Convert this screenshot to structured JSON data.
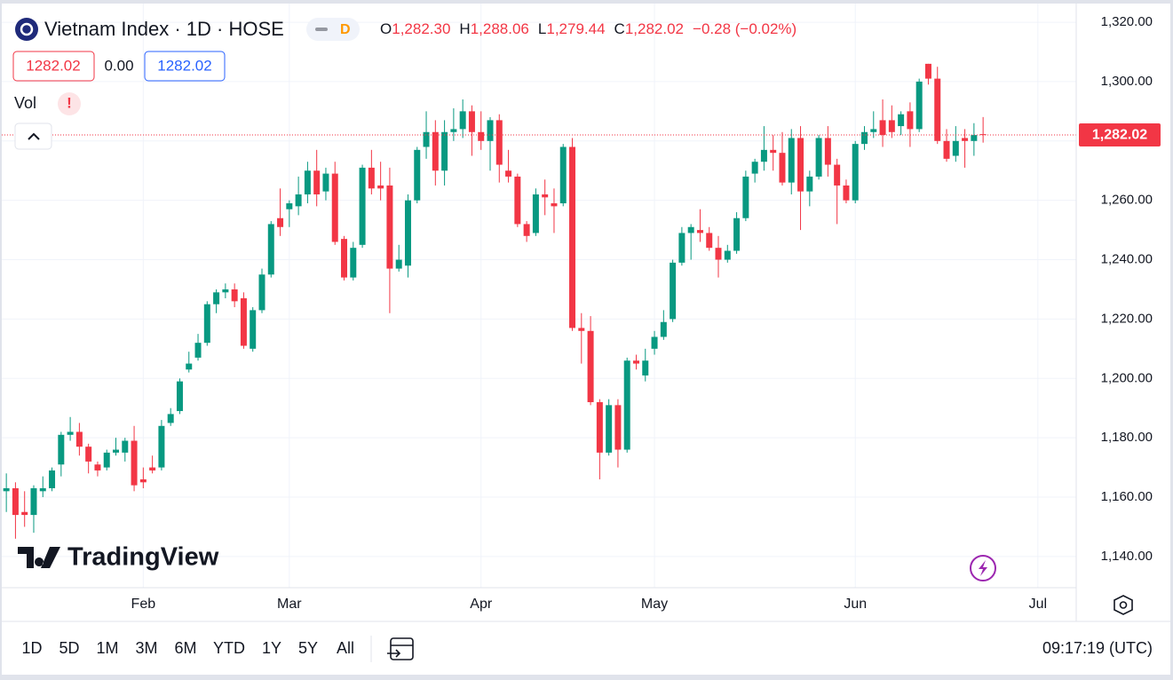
{
  "chart_data": {
    "type": "candlestick",
    "title": "Vietnam Index · 1D · HOSE",
    "interval_badge": "D",
    "legend": {
      "o_label": "O",
      "o": "1,282.30",
      "h_label": "H",
      "h": "1,288.06",
      "l_label": "L",
      "l": "1,279.44",
      "c_label": "C",
      "c": "1,282.02",
      "change": "−0.28 (−0.02%)"
    },
    "inputs": [
      "1282.02",
      "0.00",
      "1282.02"
    ],
    "volume_label": "Vol",
    "warning": "!",
    "watermark": "TradingView",
    "last_price": {
      "value": 1282.02,
      "label": "1,282.02"
    },
    "up_color": "#089981",
    "down_color": "#f23645",
    "grid": true,
    "xlim": [
      -0.5,
      117.2
    ],
    "xticks": [
      {
        "value": 15,
        "label": "Feb"
      },
      {
        "value": 31,
        "label": "Mar"
      },
      {
        "value": 52,
        "label": "Apr"
      },
      {
        "value": 71,
        "label": "May"
      },
      {
        "value": 93,
        "label": "Jun"
      },
      {
        "value": 113,
        "label": "Jul"
      }
    ],
    "ylim": [
      1129.5,
      1326.3
    ],
    "yticks": [
      {
        "value": 1140,
        "label": "1,140.00"
      },
      {
        "value": 1160,
        "label": "1,160.00"
      },
      {
        "value": 1180,
        "label": "1,180.00"
      },
      {
        "value": 1200,
        "label": "1,200.00"
      },
      {
        "value": 1220,
        "label": "1,220.00"
      },
      {
        "value": 1240,
        "label": "1,240.00"
      },
      {
        "value": 1260,
        "label": "1,260.00"
      },
      {
        "value": 1280,
        "label": "1,280.00"
      },
      {
        "value": 1300,
        "label": "1,300.00"
      },
      {
        "value": 1320,
        "label": "1,320.00"
      }
    ],
    "open": [
      1162,
      1163,
      1155,
      1154,
      1162,
      1163,
      1171,
      1181,
      1182,
      1177,
      1171,
      1170,
      1175,
      1175,
      1179,
      1166,
      1170,
      1170,
      1185,
      1189,
      1203,
      1207,
      1212,
      1225,
      1229,
      1230,
      1227,
      1210,
      1223,
      1235,
      1254,
      1257,
      1258,
      1262,
      1270,
      1263,
      1269,
      1247,
      1234,
      1245,
      1271,
      1265,
      1265,
      1237,
      1238,
      1260,
      1278,
      1283,
      1270,
      1283,
      1284,
      1290,
      1283,
      1280,
      1287,
      1270,
      1268,
      1252,
      1249,
      1262,
      1259,
      1259,
      1278,
      1217,
      1216,
      1192,
      1175,
      1191,
      1176,
      1206,
      1201,
      1210,
      1214,
      1220,
      1239,
      1249,
      1250,
      1249,
      1244,
      1240,
      1243,
      1254,
      1269,
      1273,
      1277,
      1276,
      1266,
      1281,
      1263,
      1268,
      1281,
      1272,
      1265,
      1260,
      1279,
      1283,
      1287,
      1287,
      1285,
      1290,
      1284,
      1306,
      1301,
      1280,
      1275,
      1281,
      1280,
      1282.3
    ],
    "high": [
      1168,
      1165,
      1162,
      1164,
      1167,
      1170,
      1182,
      1187,
      1185,
      1178,
      1172,
      1176,
      1180,
      1180,
      1184,
      1170,
      1174,
      1186,
      1190,
      1200,
      1209,
      1215,
      1226,
      1230,
      1232,
      1232,
      1229,
      1224,
      1237,
      1253,
      1264,
      1260,
      1268,
      1273,
      1277,
      1271,
      1273,
      1248,
      1246,
      1272,
      1277,
      1273,
      1271,
      1245,
      1262,
      1278,
      1290,
      1287,
      1287,
      1291,
      1294,
      1292,
      1290,
      1288,
      1289,
      1277,
      1269,
      1253,
      1264,
      1267,
      1264,
      1279,
      1281,
      1222,
      1221,
      1193,
      1193,
      1193,
      1207,
      1208,
      1210,
      1216,
      1223,
      1240,
      1251,
      1252,
      1257,
      1251,
      1248,
      1245,
      1256,
      1270,
      1274,
      1285,
      1282,
      1283,
      1284,
      1285,
      1270,
      1282,
      1285,
      1274,
      1267,
      1280,
      1285,
      1290,
      1294,
      1292,
      1290,
      1293,
      1301,
      1306,
      1305,
      1284,
      1285,
      1284,
      1286,
      1288.06
    ],
    "low": [
      1155,
      1146,
      1150,
      1148,
      1160,
      1162,
      1167,
      1179,
      1174,
      1168,
      1167,
      1169,
      1174,
      1172,
      1162,
      1163,
      1168,
      1169,
      1184,
      1188,
      1202,
      1206,
      1211,
      1222,
      1227,
      1224,
      1210,
      1209,
      1222,
      1234,
      1248,
      1251,
      1255,
      1259,
      1258,
      1260,
      1245,
      1233,
      1233,
      1244,
      1262,
      1260,
      1222,
      1236,
      1234,
      1259,
      1274,
      1265,
      1265,
      1280,
      1281,
      1275,
      1277,
      1270,
      1266,
      1266,
      1251,
      1246,
      1248,
      1255,
      1249,
      1258,
      1216,
      1205,
      1191,
      1166,
      1174,
      1170,
      1175,
      1203,
      1199,
      1208,
      1213,
      1219,
      1238,
      1240,
      1246,
      1243,
      1234,
      1239,
      1242,
      1253,
      1266,
      1270,
      1270,
      1265,
      1262,
      1250,
      1258,
      1267,
      1268,
      1252,
      1259,
      1259,
      1277,
      1281,
      1278,
      1281,
      1282,
      1278,
      1283,
      1299,
      1279,
      1273,
      1273,
      1271,
      1275,
      1279.44
    ],
    "close": [
      1163,
      1154,
      1154,
      1163,
      1163,
      1169,
      1181,
      1182,
      1177,
      1172,
      1169,
      1175,
      1176,
      1179,
      1164,
      1165,
      1169,
      1184,
      1188,
      1199,
      1205,
      1212,
      1225,
      1229,
      1230,
      1226,
      1211,
      1223,
      1235,
      1252,
      1251,
      1259,
      1262,
      1270,
      1262,
      1269,
      1246,
      1234,
      1244,
      1271,
      1264,
      1264,
      1237,
      1240,
      1260,
      1277,
      1283,
      1270,
      1283,
      1284,
      1290,
      1283,
      1280,
      1287,
      1272,
      1268,
      1252,
      1248,
      1262,
      1261,
      1258,
      1278,
      1217,
      1216,
      1192,
      1175,
      1191,
      1176,
      1206,
      1205,
      1206,
      1214,
      1219,
      1239,
      1249,
      1251,
      1249,
      1244,
      1240,
      1243,
      1254,
      1268,
      1273,
      1277,
      1276,
      1266,
      1281,
      1263,
      1268,
      1281,
      1272,
      1265,
      1260,
      1279,
      1283,
      1284,
      1282,
      1283,
      1289,
      1284,
      1300,
      1301,
      1280,
      1274,
      1280,
      1280,
      1282,
      1282.02
    ],
    "ranges": [
      "1D",
      "5D",
      "1M",
      "3M",
      "6M",
      "YTD",
      "1Y",
      "5Y",
      "All"
    ],
    "clock": "09:17:19 (UTC)"
  }
}
